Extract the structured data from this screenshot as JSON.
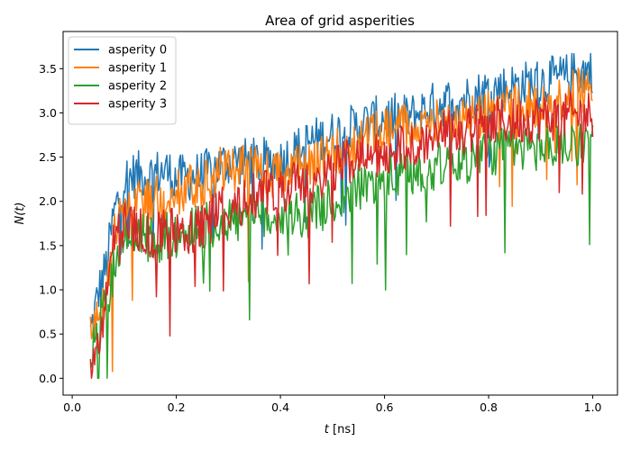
{
  "chart_data": {
    "type": "line",
    "title": "Area of grid asperities",
    "xlabel_var": "t",
    "xlabel_unit": " [ns]",
    "ylabel": "N(t)",
    "xlim": [
      -0.0175,
      1.0475
    ],
    "ylim": [
      -0.19,
      3.92
    ],
    "xticks": [
      0.0,
      0.2,
      0.4,
      0.6,
      0.8,
      1.0
    ],
    "xtick_labels": [
      "0.0",
      "0.2",
      "0.4",
      "0.6",
      "0.8",
      "1.0"
    ],
    "yticks": [
      0.0,
      0.5,
      1.0,
      1.5,
      2.0,
      2.5,
      3.0,
      3.5
    ],
    "ytick_labels": [
      "0.0",
      "0.5",
      "1.0",
      "1.5",
      "2.0",
      "2.5",
      "3.0",
      "3.5"
    ],
    "grid": false,
    "legend_position": "upper-left",
    "x": [
      0.035,
      0.05,
      0.065,
      0.08,
      0.1,
      0.12,
      0.15,
      0.18,
      0.2,
      0.25,
      0.3,
      0.35,
      0.4,
      0.45,
      0.5,
      0.55,
      0.6,
      0.65,
      0.7,
      0.75,
      0.8,
      0.85,
      0.9,
      0.95,
      1.0
    ],
    "series": [
      {
        "name": "asperity 0",
        "color": "#1f77b4",
        "values": [
          0.5,
          0.95,
          1.25,
          1.85,
          2.25,
          2.3,
          2.3,
          2.35,
          2.25,
          2.3,
          2.45,
          2.45,
          2.45,
          2.65,
          2.75,
          2.85,
          2.95,
          2.95,
          3.1,
          3.15,
          3.25,
          3.3,
          3.35,
          3.4,
          3.5
        ]
      },
      {
        "name": "asperity 1",
        "color": "#ff7f0e",
        "values": [
          0.45,
          0.75,
          1.0,
          1.6,
          1.95,
          1.95,
          2.0,
          2.05,
          2.1,
          2.2,
          2.4,
          2.35,
          2.3,
          2.4,
          2.55,
          2.65,
          2.8,
          2.85,
          2.9,
          2.95,
          3.0,
          3.05,
          3.1,
          3.2,
          3.3
        ]
      },
      {
        "name": "asperity 2",
        "color": "#2ca02c",
        "values": [
          0.3,
          0.55,
          0.8,
          1.25,
          1.55,
          1.65,
          1.55,
          1.6,
          1.6,
          1.7,
          1.8,
          1.8,
          1.85,
          1.85,
          2.0,
          2.15,
          2.25,
          2.3,
          2.4,
          2.45,
          2.55,
          2.6,
          2.6,
          2.65,
          2.7
        ]
      },
      {
        "name": "asperity 3",
        "color": "#d62728",
        "values": [
          0.2,
          0.4,
          0.8,
          1.55,
          1.75,
          1.7,
          1.6,
          1.7,
          1.65,
          1.7,
          1.95,
          2.05,
          2.15,
          2.2,
          2.35,
          2.5,
          2.5,
          2.65,
          2.75,
          2.8,
          2.9,
          2.9,
          2.95,
          2.95,
          3.0
        ]
      }
    ]
  }
}
